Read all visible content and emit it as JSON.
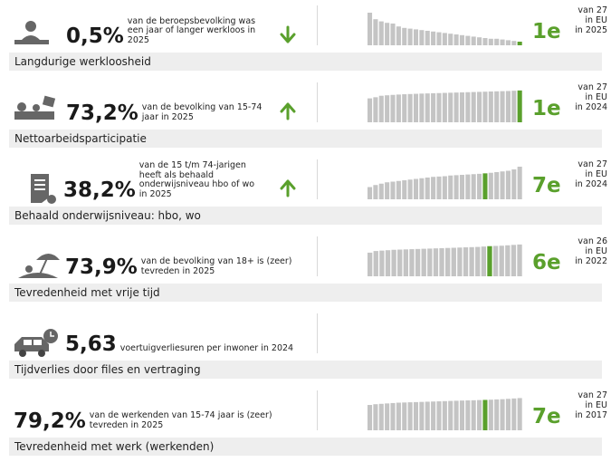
{
  "rows": [
    {
      "value": "0,5%",
      "description": [
        "van de beroepsbevolking was",
        "een jaar of langer werkloos in",
        "2025"
      ],
      "label": "Langdurige werkloosheid",
      "trend": "down",
      "rank": "1e",
      "context": [
        "van 27",
        "in EU",
        "in 2025"
      ],
      "ylim": [
        0,
        4.5
      ],
      "highlight": 26,
      "bars": [
        4.5,
        3.6,
        3.3,
        3.1,
        3.0,
        2.6,
        2.4,
        2.3,
        2.2,
        2.1,
        2.0,
        1.9,
        1.8,
        1.7,
        1.6,
        1.5,
        1.4,
        1.3,
        1.2,
        1.1,
        1.0,
        0.9,
        0.9,
        0.8,
        0.7,
        0.6,
        0.5
      ]
    },
    {
      "value": "73,2%",
      "description": [
        "van de bevolking van 15-74",
        "jaar in 2025"
      ],
      "label": "Nettoarbeidsparticipatie",
      "trend": "up",
      "rank": "1e",
      "context": [
        "van 27",
        "in EU",
        "in 2024"
      ],
      "ylim": [
        0,
        75
      ],
      "highlight": 26,
      "bars": [
        55.0,
        57.6,
        61.0,
        62.1,
        63.0,
        63.8,
        64.5,
        65.0,
        65.5,
        66.0,
        66.4,
        66.8,
        67.2,
        67.6,
        68.0,
        68.4,
        68.8,
        69.2,
        69.6,
        70.0,
        70.4,
        70.8,
        71.2,
        71.6,
        72.0,
        72.6,
        73.2
      ]
    },
    {
      "value": "38,2%",
      "description": [
        "van de 15 t/m 74-jarigen",
        "heeft als behaald",
        "onderwijsniveau hbo of wo",
        "in 2025"
      ],
      "label": "Behaald onderwijsniveau: hbo, wo",
      "trend": "up",
      "rank": "7e",
      "context": [
        "van 27",
        "in EU",
        "in 2024"
      ],
      "ylim": [
        0,
        48
      ],
      "highlight": 20,
      "bars": [
        18,
        21,
        23,
        25,
        26,
        27,
        28,
        29,
        30,
        31,
        32,
        33,
        33.5,
        34,
        35,
        35.5,
        36,
        36.5,
        37,
        37.5,
        38.2,
        39,
        40,
        41,
        42,
        44,
        48
      ]
    },
    {
      "value": "73,9%",
      "description": [
        "van de bevolking van 18+ is (zeer)",
        "tevreden in 2025"
      ],
      "label": "Tevredenheid met vrije tijd",
      "rank": "6e",
      "context": [
        "van 26",
        "in EU",
        "in 2022"
      ],
      "ylim": [
        0,
        80
      ],
      "highlight": 20,
      "bars": [
        58,
        62,
        63,
        64,
        65,
        65.5,
        66,
        66.5,
        67,
        67.5,
        68,
        68.5,
        69,
        69.5,
        70,
        70.5,
        71,
        71.5,
        72,
        73,
        73.9,
        74.5,
        75,
        76,
        77,
        78
      ]
    },
    {
      "value": "5,63",
      "description": [
        "voertuigverliesuren per inwoner in 2024"
      ],
      "label": "Tijdverlies door files en vertraging"
    },
    {
      "value": "79,2%",
      "description": [
        "van de werkenden van 15-74 jaar is (zeer)",
        "tevreden in 2025"
      ],
      "label": "Tevredenheid met werk (werkenden)",
      "rank": "7e",
      "context": [
        "van 27",
        "in EU",
        "in 2017"
      ],
      "ylim": [
        0,
        85
      ],
      "highlight": 20,
      "bars": [
        66,
        68,
        69,
        70,
        71,
        72,
        72.5,
        73,
        73.5,
        74,
        74.5,
        75,
        75.5,
        76,
        76.5,
        77,
        77.5,
        78,
        78.3,
        78.8,
        79.2,
        79.8,
        80.5,
        81,
        82,
        83,
        84
      ]
    }
  ]
}
